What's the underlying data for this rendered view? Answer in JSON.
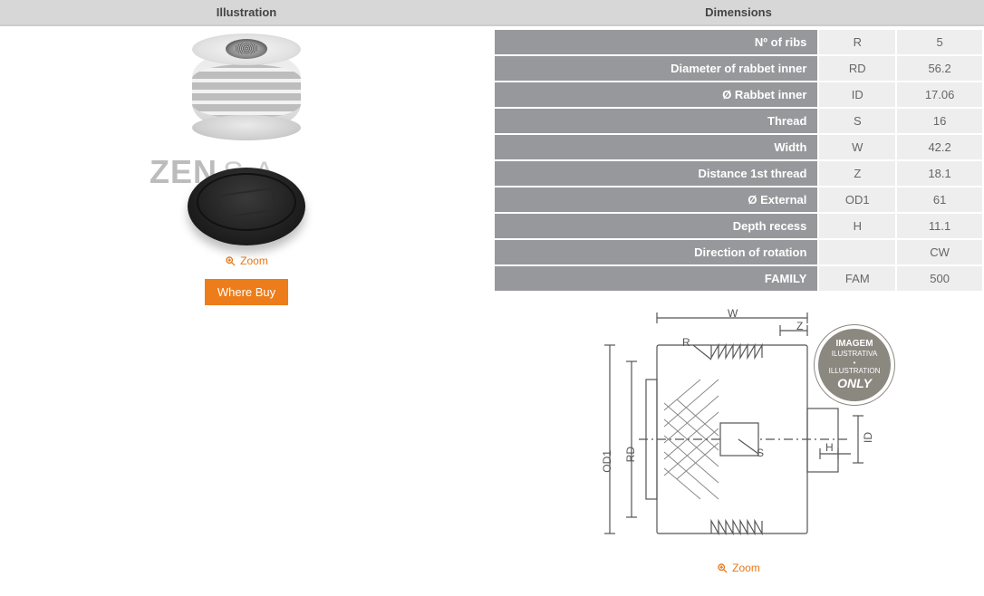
{
  "headers": {
    "illustration": "Illustration",
    "dimensions": "Dimensions"
  },
  "watermark": {
    "brand": "ZEN",
    "suffix": "S.A."
  },
  "zoom_label": "Zoom",
  "where_buy_label": "Where Buy",
  "colors": {
    "accent": "#e67817",
    "header_bg": "#d7d7d7",
    "row_label_bg": "#96989b",
    "row_cell_bg": "#eeeeee",
    "text": "#555555"
  },
  "dimensions_table": {
    "rows": [
      {
        "label": "Nº of ribs",
        "code": "R",
        "value": "5"
      },
      {
        "label": "Diameter of rabbet inner",
        "code": "RD",
        "value": "56.2"
      },
      {
        "label": "Ø Rabbet inner",
        "code": "ID",
        "value": "17.06"
      },
      {
        "label": "Thread",
        "code": "S",
        "value": "16"
      },
      {
        "label": "Width",
        "code": "W",
        "value": "42.2"
      },
      {
        "label": "Distance 1st thread",
        "code": "Z",
        "value": "18.1"
      },
      {
        "label": "Ø External",
        "code": "OD1",
        "value": "61"
      },
      {
        "label": "Depth recess",
        "code": "H",
        "value": "11.1"
      },
      {
        "label": "Direction of rotation",
        "code": "",
        "value": "CW"
      },
      {
        "label": "FAMILY",
        "code": "FAM",
        "value": "500"
      }
    ]
  },
  "drawing_labels": {
    "W": "W",
    "Z": "Z",
    "R": "R",
    "S": "S",
    "H": "H",
    "ID": "ID",
    "RD": "RD",
    "OD1": "OD1"
  },
  "stamp": {
    "line1": "IMAGEM",
    "line2": "ILUSTRATIVA",
    "dot": "•",
    "line3": "ILLUSTRATION",
    "line4": "ONLY"
  }
}
